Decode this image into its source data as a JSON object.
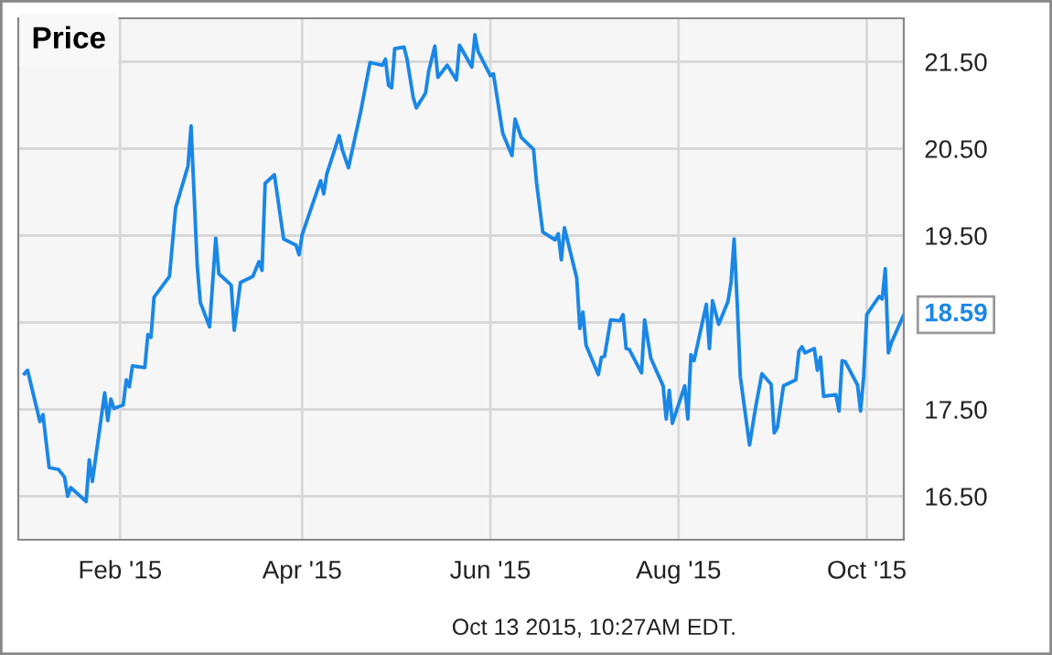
{
  "chart_data": {
    "type": "line",
    "title": "Price",
    "x": [
      "2015-01-01",
      "2015-01-02",
      "2015-01-06",
      "2015-01-07",
      "2015-01-09",
      "2015-01-12",
      "2015-01-14",
      "2015-01-15",
      "2015-01-16",
      "2015-01-21",
      "2015-01-22",
      "2015-01-23",
      "2015-01-27",
      "2015-01-28",
      "2015-01-29",
      "2015-01-30",
      "2015-02-02",
      "2015-02-03",
      "2015-02-04",
      "2015-02-05",
      "2015-02-09",
      "2015-02-10",
      "2015-02-11",
      "2015-02-12",
      "2015-02-17",
      "2015-02-19",
      "2015-02-23",
      "2015-02-24",
      "2015-02-26",
      "2015-02-27",
      "2015-03-02",
      "2015-03-03",
      "2015-03-04",
      "2015-03-05",
      "2015-03-09",
      "2015-03-10",
      "2015-03-12",
      "2015-03-16",
      "2015-03-18",
      "2015-03-19",
      "2015-03-20",
      "2015-03-23",
      "2015-03-26",
      "2015-03-30",
      "2015-03-31",
      "2015-04-01",
      "2015-04-06",
      "2015-04-07",
      "2015-04-08",
      "2015-04-09",
      "2015-04-13",
      "2015-04-14",
      "2015-04-16",
      "2015-04-20",
      "2015-04-23",
      "2015-04-27",
      "2015-04-28",
      "2015-04-29",
      "2015-04-30",
      "2015-05-01",
      "2015-05-04",
      "2015-05-05",
      "2015-05-07",
      "2015-05-08",
      "2015-05-11",
      "2015-05-12",
      "2015-05-14",
      "2015-05-15",
      "2015-05-18",
      "2015-05-21",
      "2015-05-22",
      "2015-05-26",
      "2015-05-27",
      "2015-05-28",
      "2015-06-01",
      "2015-06-02",
      "2015-06-05",
      "2015-06-08",
      "2015-06-09",
      "2015-06-11",
      "2015-06-15",
      "2015-06-16",
      "2015-06-18",
      "2015-06-22",
      "2015-06-23",
      "2015-06-24",
      "2015-06-25",
      "2015-06-29",
      "2015-06-30",
      "2015-07-01",
      "2015-07-02",
      "2015-07-06",
      "2015-07-07",
      "2015-07-08",
      "2015-07-10",
      "2015-07-13",
      "2015-07-14",
      "2015-07-15",
      "2015-07-16",
      "2015-07-20",
      "2015-07-21",
      "2015-07-23",
      "2015-07-27",
      "2015-07-28",
      "2015-07-29",
      "2015-07-30",
      "2015-08-03",
      "2015-08-04",
      "2015-08-05",
      "2015-08-06",
      "2015-08-10",
      "2015-08-11",
      "2015-08-12",
      "2015-08-14",
      "2015-08-17",
      "2015-08-18",
      "2015-08-19",
      "2015-08-20",
      "2015-08-21",
      "2015-08-24",
      "2015-08-26",
      "2015-08-28",
      "2015-08-31",
      "2015-09-01",
      "2015-09-02",
      "2015-09-04",
      "2015-09-08",
      "2015-09-09",
      "2015-09-10",
      "2015-09-11",
      "2015-09-14",
      "2015-09-15",
      "2015-09-16",
      "2015-09-17",
      "2015-09-21",
      "2015-09-22",
      "2015-09-23",
      "2015-09-24",
      "2015-09-28",
      "2015-09-29",
      "2015-09-30",
      "2015-10-01",
      "2015-10-05",
      "2015-10-06",
      "2015-10-07",
      "2015-10-08",
      "2015-10-09",
      "2015-10-13"
    ],
    "series": [
      {
        "color": "#1a87e6",
        "values": [
          17.91,
          17.95,
          17.36,
          17.44,
          16.83,
          16.81,
          16.72,
          16.5,
          16.6,
          16.44,
          16.92,
          16.67,
          17.69,
          17.37,
          17.62,
          17.51,
          17.55,
          17.84,
          17.76,
          18.0,
          17.98,
          18.36,
          18.33,
          18.79,
          19.03,
          19.82,
          20.3,
          20.76,
          19.15,
          18.73,
          18.45,
          18.96,
          19.47,
          19.06,
          18.93,
          18.41,
          18.96,
          19.03,
          19.2,
          19.1,
          20.1,
          20.2,
          19.46,
          19.39,
          19.28,
          19.51,
          20.03,
          20.13,
          19.98,
          20.21,
          20.65,
          20.49,
          20.28,
          20.93,
          21.49,
          21.46,
          21.53,
          21.23,
          21.2,
          21.65,
          21.67,
          21.53,
          21.09,
          20.97,
          21.14,
          21.39,
          21.68,
          21.32,
          21.46,
          21.29,
          21.69,
          21.44,
          21.81,
          21.62,
          21.34,
          21.36,
          20.68,
          20.42,
          20.84,
          20.63,
          20.49,
          20.1,
          19.54,
          19.45,
          19.52,
          19.22,
          19.59,
          19.01,
          18.43,
          18.62,
          18.24,
          17.9,
          18.1,
          18.11,
          18.53,
          18.52,
          18.59,
          18.2,
          18.19,
          17.92,
          18.53,
          18.09,
          17.77,
          17.39,
          17.72,
          17.34,
          17.77,
          17.39,
          18.13,
          18.06,
          18.71,
          18.2,
          18.75,
          18.48,
          18.74,
          18.96,
          19.46,
          18.73,
          17.88,
          17.09,
          17.53,
          17.91,
          17.79,
          17.23,
          17.29,
          17.77,
          17.84,
          18.17,
          18.22,
          18.15,
          18.2,
          17.95,
          18.1,
          17.65,
          17.67,
          17.48,
          18.06,
          18.05,
          17.78,
          17.48,
          17.88,
          18.59,
          18.8,
          18.77,
          19.12,
          18.15,
          18.27,
          18.59
        ]
      }
    ],
    "xlim": [
      "2014-12-30",
      "2015-10-13"
    ],
    "xticks": [
      {
        "value": "2015-02-01",
        "label": "Feb '15"
      },
      {
        "value": "2015-04-01",
        "label": "Apr '15"
      },
      {
        "value": "2015-06-01",
        "label": "Jun '15"
      },
      {
        "value": "2015-08-01",
        "label": "Aug '15"
      },
      {
        "value": "2015-10-01",
        "label": "Oct '15"
      }
    ],
    "ylim": [
      16.0,
      22.0
    ],
    "yticks": [
      {
        "value": 16.5,
        "label": "16.50"
      },
      {
        "value": 17.5,
        "label": "17.50"
      },
      {
        "value": 18.5,
        "label": null
      },
      {
        "value": 19.5,
        "label": "19.50"
      },
      {
        "value": 20.5,
        "label": "20.50"
      },
      {
        "value": 21.5,
        "label": "21.50"
      }
    ],
    "grid": true,
    "legend": false,
    "marker": "none",
    "line_style": "solid",
    "annotations": [
      {
        "text": "18.59",
        "x": "2015-10-13",
        "y": 18.59
      },
      "Oct 13 2015, 10:27AM EDT."
    ]
  }
}
